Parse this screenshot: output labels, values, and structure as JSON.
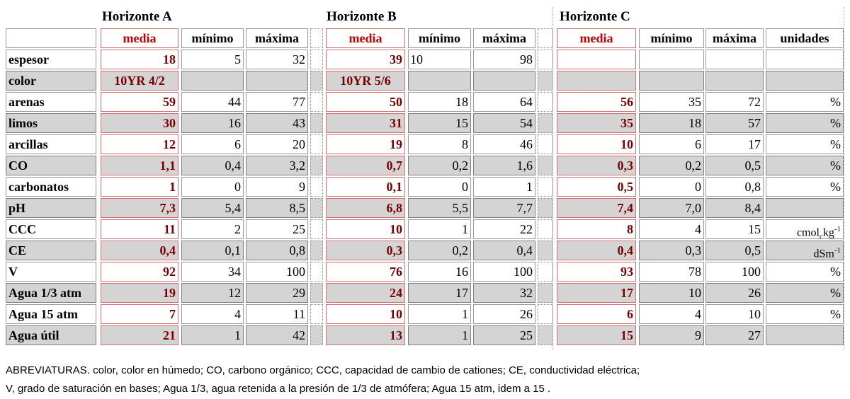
{
  "header": {
    "horizon_a": "Horizonte A",
    "horizon_b": "Horizonte B",
    "horizon_c": "Horizonte C",
    "col_media": "media",
    "col_min": "mínimo",
    "col_max": "máxima",
    "col_units": "unidades"
  },
  "rows": [
    {
      "label": "espesor",
      "a": [
        "18",
        "5",
        "32"
      ],
      "b": [
        "39",
        "10",
        "98"
      ],
      "c": [
        "",
        "",
        ""
      ],
      "unit": ""
    },
    {
      "label": "color",
      "a": [
        "10YR 4/2",
        "",
        ""
      ],
      "b": [
        "10YR 5/6",
        "",
        ""
      ],
      "c": [
        "",
        "",
        ""
      ],
      "unit": ""
    },
    {
      "label": "arenas",
      "a": [
        "59",
        "44",
        "77"
      ],
      "b": [
        "50",
        "18",
        "64"
      ],
      "c": [
        "56",
        "35",
        "72"
      ],
      "unit": "%"
    },
    {
      "label": "limos",
      "a": [
        "30",
        "16",
        "43"
      ],
      "b": [
        "31",
        "15",
        "54"
      ],
      "c": [
        "35",
        "18",
        "57"
      ],
      "unit": "%"
    },
    {
      "label": "arcillas",
      "a": [
        "12",
        "6",
        "20"
      ],
      "b": [
        "19",
        "8",
        "46"
      ],
      "c": [
        "10",
        "6",
        "17"
      ],
      "unit": "%"
    },
    {
      "label": "CO",
      "a": [
        "1,1",
        "0,4",
        "3,2"
      ],
      "b": [
        "0,7",
        "0,2",
        "1,6"
      ],
      "c": [
        "0,3",
        "0,2",
        "0,5"
      ],
      "unit": "%"
    },
    {
      "label": "carbonatos",
      "a": [
        "1",
        "0",
        "9"
      ],
      "b": [
        "0,1",
        "0",
        "1"
      ],
      "c": [
        "0,5",
        "0",
        "0,8"
      ],
      "unit": "%"
    },
    {
      "label": "pH",
      "a": [
        "7,3",
        "5,4",
        "8,5"
      ],
      "b": [
        "6,8",
        "5,5",
        "7,7"
      ],
      "c": [
        "7,4",
        "7,0",
        "8,4"
      ],
      "unit": ""
    },
    {
      "label": "CCC",
      "a": [
        "11",
        "2",
        "25"
      ],
      "b": [
        "10",
        "1",
        "22"
      ],
      "c": [
        "8",
        "4",
        "15"
      ],
      "unit": "cmolc kg-1"
    },
    {
      "label": "CE",
      "a": [
        "0,4",
        "0,1",
        "0,8"
      ],
      "b": [
        "0,3",
        "0,2",
        "0,4"
      ],
      "c": [
        "0,4",
        "0,3",
        "0,5"
      ],
      "unit": "dSm-1"
    },
    {
      "label": "V",
      "a": [
        "92",
        "34",
        "100"
      ],
      "b": [
        "76",
        "16",
        "100"
      ],
      "c": [
        "93",
        "78",
        "100"
      ],
      "unit": "%"
    },
    {
      "label": "Agua 1/3 atm",
      "a": [
        "19",
        "12",
        "29"
      ],
      "b": [
        "24",
        "17",
        "32"
      ],
      "c": [
        "17",
        "10",
        "26"
      ],
      "unit": "%"
    },
    {
      "label": "Agua 15 atm",
      "a": [
        "7",
        "4",
        "11"
      ],
      "b": [
        "10",
        "1",
        "26"
      ],
      "c": [
        "6",
        "4",
        "10"
      ],
      "unit": "%"
    },
    {
      "label": "Agua útil",
      "a": [
        "21",
        "1",
        "42"
      ],
      "b": [
        "13",
        "1",
        "25"
      ],
      "c": [
        "15",
        "9",
        "27"
      ],
      "unit": ""
    }
  ],
  "units_parts": {
    "ccc_base": "cmol",
    "ccc_sub": "c",
    "ccc_mid": "kg",
    "ccc_sup": "-1",
    "ce_base": "dSm",
    "ce_sup": "-1"
  },
  "notes": {
    "line1": "ABREVIATURAS. color, color en húmedo;   CO, carbono orgánico;   CCC, capacidad de cambio de cationes;   CE, conductividad eléctrica;",
    "line2": "V, grado de saturación en bases;    Agua 1/3, agua retenida a la presión de 1/3 de atmófera; Agua 15 atm, idem a 15 ."
  }
}
